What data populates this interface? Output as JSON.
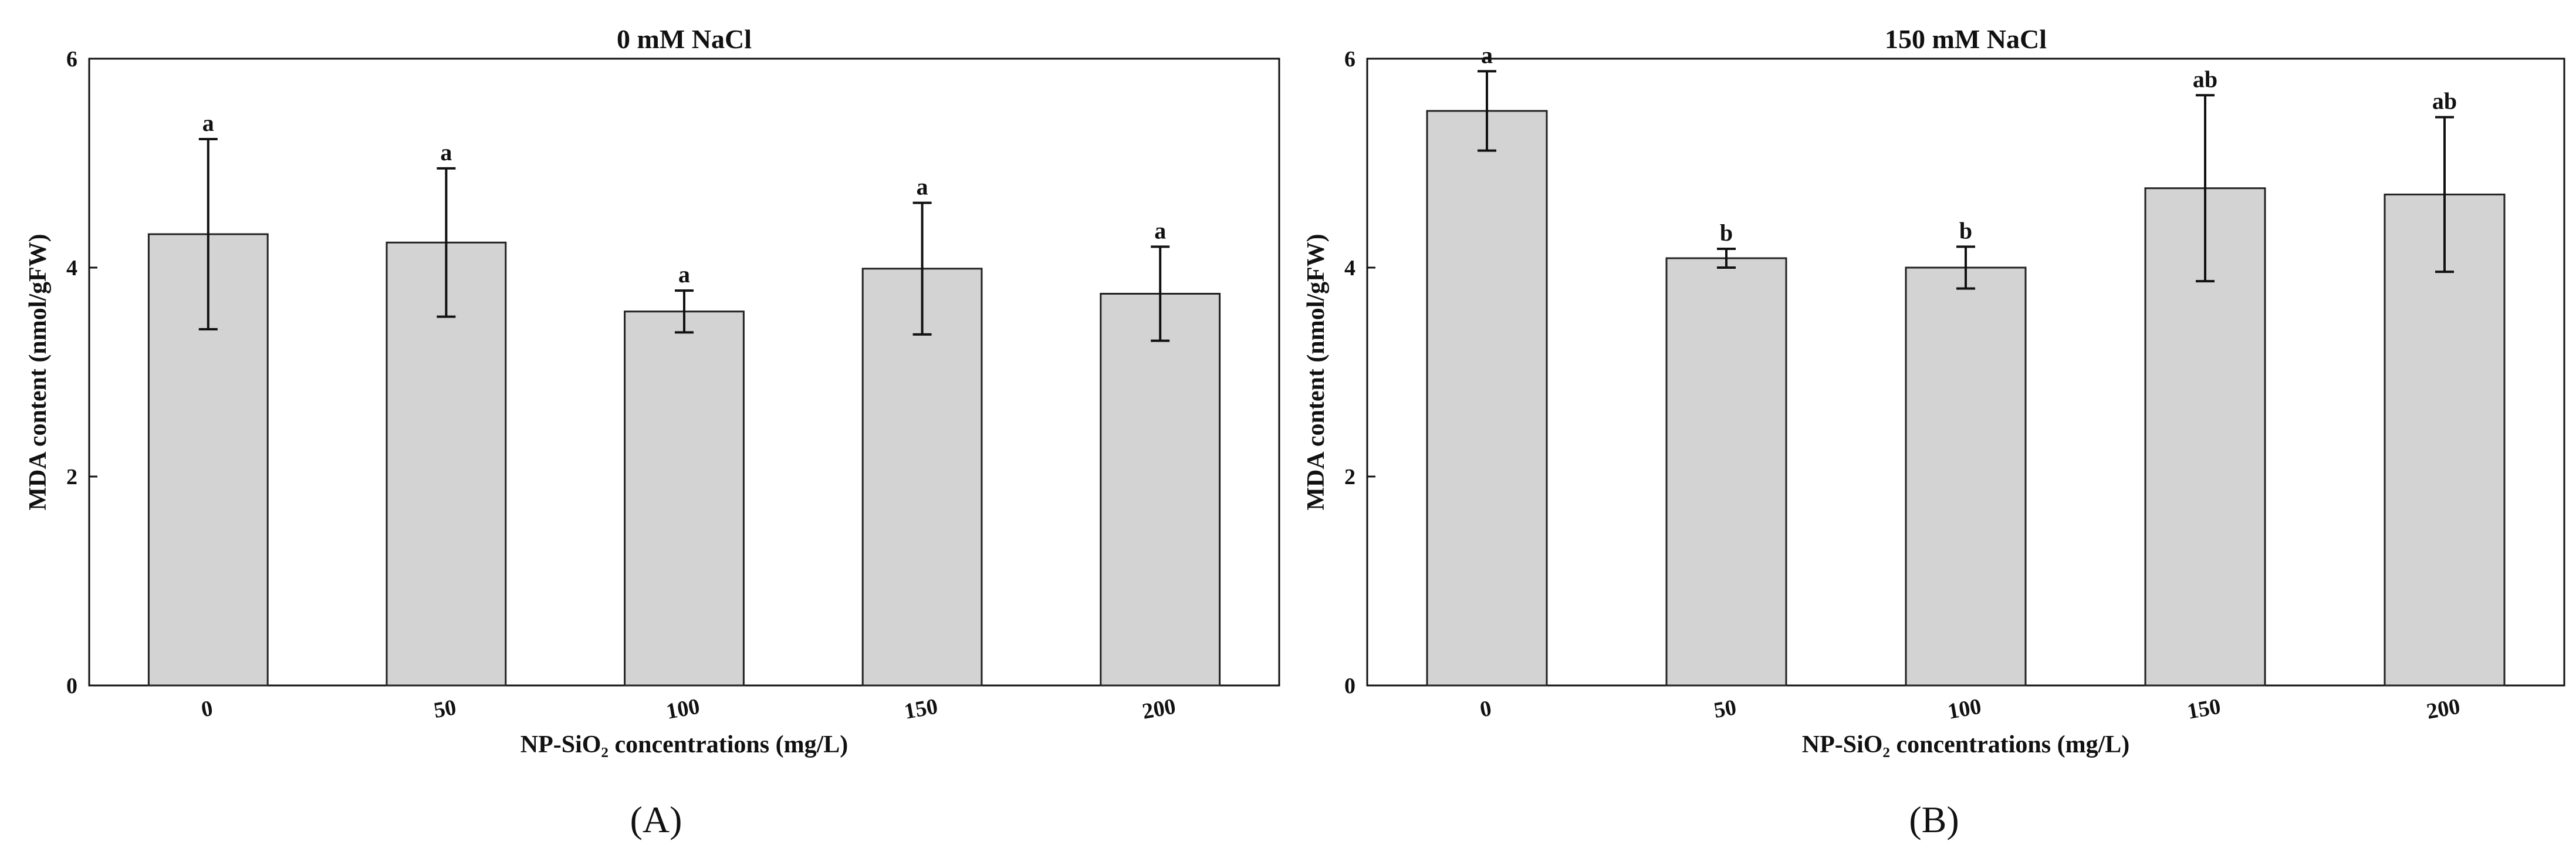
{
  "chart_data": [
    {
      "panel": "A",
      "type": "bar",
      "title": "0 mM NaCl",
      "xlabel": "NP-SiO₂ concentrations (mg/L)",
      "ylabel": "MDA content (nmol/gFW)",
      "ylim": [
        0,
        6
      ],
      "yticks": [
        "0",
        "2",
        "4",
        "6"
      ],
      "categories": [
        "0",
        "50",
        "100",
        "150",
        "200"
      ],
      "values": [
        4.32,
        4.24,
        3.58,
        3.99,
        3.75
      ],
      "errors": [
        0.91,
        0.71,
        0.2,
        0.63,
        0.45
      ],
      "letters": [
        "a",
        "a",
        "a",
        "a",
        "a"
      ],
      "grid": false,
      "legend": "none",
      "bar_color": "#d3d3d3"
    },
    {
      "panel": "B",
      "type": "bar",
      "title": "150 mM NaCl",
      "xlabel": "NP-SiO₂ concentrations (mg/L)",
      "ylabel": "MDA content (nmol/gFW)",
      "ylim": [
        0,
        6
      ],
      "yticks": [
        "0",
        "2",
        "4",
        "6"
      ],
      "categories": [
        "0",
        "50",
        "100",
        "150",
        "200"
      ],
      "values": [
        5.5,
        4.09,
        4.0,
        4.76,
        4.7
      ],
      "errors": [
        0.38,
        0.09,
        0.2,
        0.89,
        0.74
      ],
      "letters": [
        "a",
        "b",
        "b",
        "ab",
        "ab"
      ],
      "grid": false,
      "legend": "none",
      "bar_color": "#d3d3d3"
    }
  ],
  "panel_labels": [
    "(A)",
    "(B)"
  ]
}
